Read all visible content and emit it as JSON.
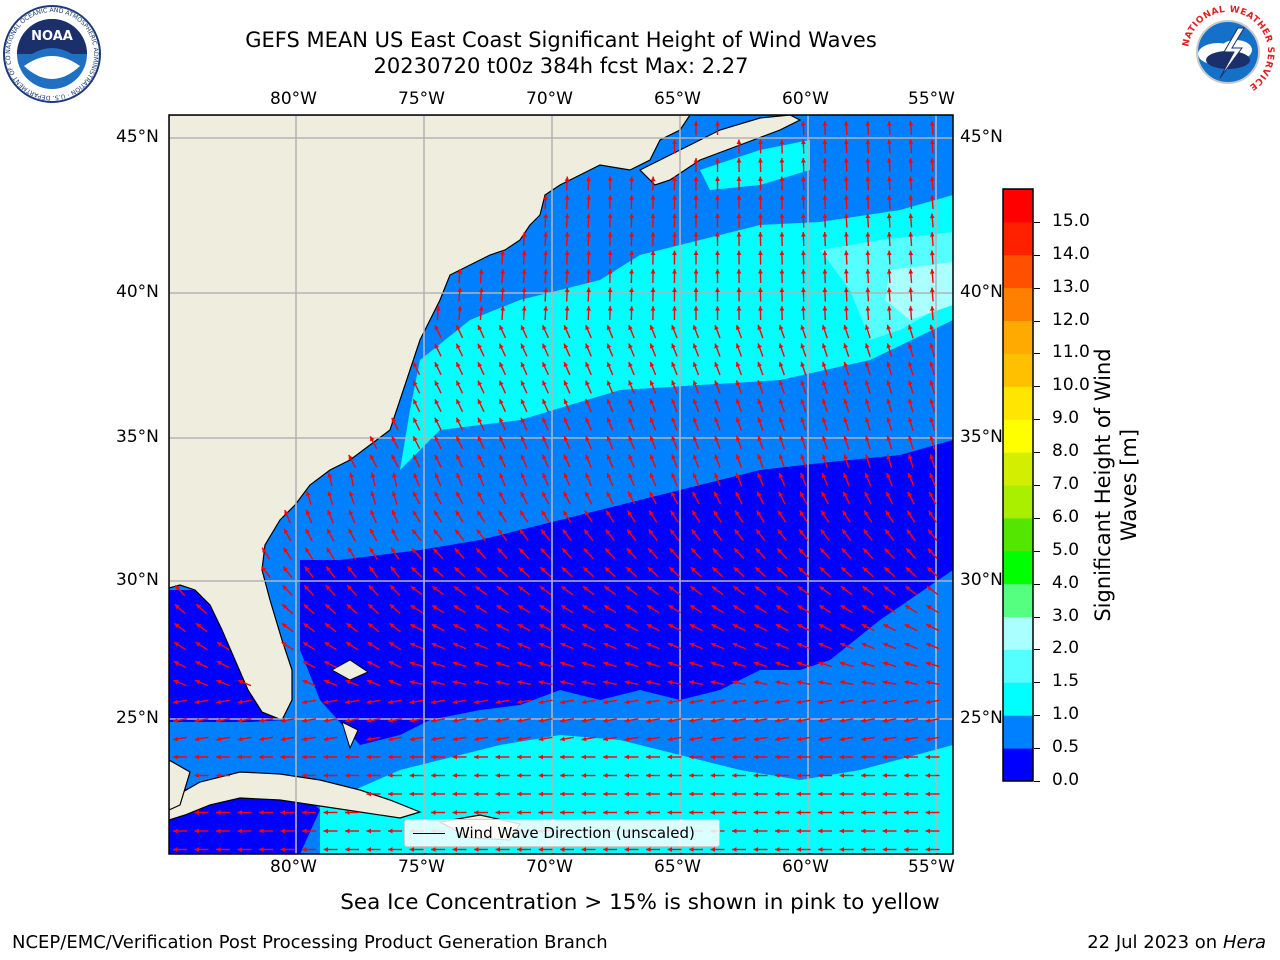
{
  "title": {
    "line1": "GEFS MEAN US East Coast Significant Height of Wind Waves",
    "line2": "20230720 t00z 384h fcst   Max: 2.27"
  },
  "logos": {
    "left": {
      "name": "noaa-logo",
      "text": "NOAA",
      "ring_text": "NATIONAL OCEANIC AND ATMOSPHERIC ADMINISTRATION · U.S. DEPARTMENT OF COMMERCE"
    },
    "right": {
      "name": "nws-logo",
      "ring_text": "NATIONAL WEATHER SERVICE"
    }
  },
  "map": {
    "lon_labels": [
      "80°W",
      "75°W",
      "70°W",
      "65°W",
      "60°W",
      "55°W"
    ],
    "lat_labels": [
      "45°N",
      "40°N",
      "35°N",
      "30°N",
      "25°N"
    ],
    "lon_range": [
      -85,
      -54.5
    ],
    "lat_range": [
      20.5,
      46.2
    ],
    "legend_label": "Wind Wave Direction (unscaled)",
    "colors": {
      "land": "#efedde",
      "arrow": "#ff0000",
      "grid": "#b4b4b4",
      "coast": "#000000"
    }
  },
  "colorbar": {
    "label": "Significant Height of Wind Waves [m]",
    "ticks": [
      "0.0",
      "0.5",
      "1.0",
      "1.5",
      "2.0",
      "3.0",
      "4.0",
      "5.0",
      "6.0",
      "7.0",
      "8.0",
      "9.0",
      "10.0",
      "11.0",
      "12.0",
      "13.0",
      "14.0",
      "15.0"
    ],
    "colors": [
      "#0000ff",
      "#0080ff",
      "#00ffff",
      "#55ffff",
      "#aaffff",
      "#55ff7f",
      "#00ff00",
      "#55e600",
      "#aaee00",
      "#d4ee00",
      "#ffff00",
      "#ffe600",
      "#ffc000",
      "#ffaa00",
      "#ff8000",
      "#ff5000",
      "#ff2000",
      "#ff0000"
    ]
  },
  "subcaption": "Sea Ice Concentration > 15% is shown in pink to yellow",
  "footer": {
    "left": "NCEP/EMC/Verification Post Processing Product Generation Branch",
    "right_prefix": "22 Jul 2023 on",
    "right_host": "Hera"
  }
}
